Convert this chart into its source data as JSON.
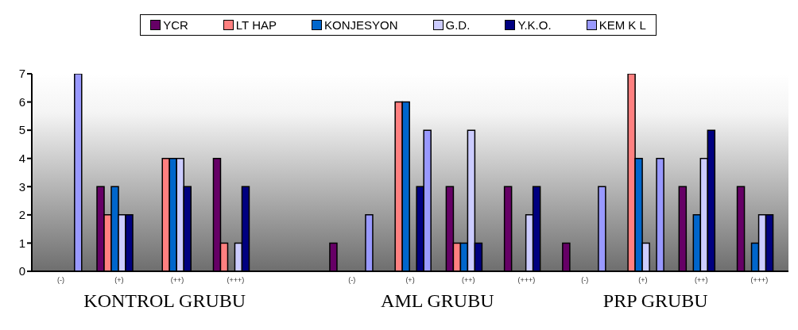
{
  "chart_data": {
    "type": "bar",
    "categories": [
      "(-)",
      "(+)",
      "(++)",
      "(+++)",
      null,
      "(-)",
      "(+)",
      "(++)",
      "(+++)",
      "(-)",
      "(+)",
      "(++)",
      "(+++)"
    ],
    "series": [
      {
        "name": "YCR",
        "color": "#660066",
        "values": [
          0,
          3,
          0,
          4,
          null,
          1,
          0,
          3,
          3,
          1,
          0,
          3,
          3
        ]
      },
      {
        "name": "LT HAP",
        "color": "#ff8080",
        "values": [
          0,
          2,
          4,
          1,
          null,
          0,
          6,
          1,
          0,
          0,
          7,
          0,
          0
        ]
      },
      {
        "name": "KONJESYON",
        "color": "#0066cc",
        "values": [
          0,
          3,
          4,
          0,
          null,
          0,
          6,
          1,
          0,
          0,
          4,
          2,
          1
        ]
      },
      {
        "name": "G.D.",
        "color": "#ccccff",
        "values": [
          0,
          2,
          4,
          1,
          null,
          0,
          0,
          5,
          2,
          0,
          1,
          4,
          2
        ]
      },
      {
        "name": "Y.K.O.",
        "color": "#000080",
        "values": [
          0,
          2,
          3,
          3,
          null,
          0,
          3,
          1,
          3,
          0,
          0,
          5,
          2
        ]
      },
      {
        "name": "KEM K L",
        "color": "#9999ff",
        "values": [
          7,
          0,
          0,
          0,
          null,
          2,
          5,
          0,
          0,
          3,
          4,
          0,
          0
        ]
      }
    ],
    "ylim": [
      0,
      7
    ],
    "yticks": [
      0,
      1,
      2,
      3,
      4,
      5,
      6,
      7
    ],
    "legend": "top",
    "annotations": [
      "KONTROL GRUBU",
      "AML GRUBU",
      "PRP GRUBU"
    ]
  }
}
